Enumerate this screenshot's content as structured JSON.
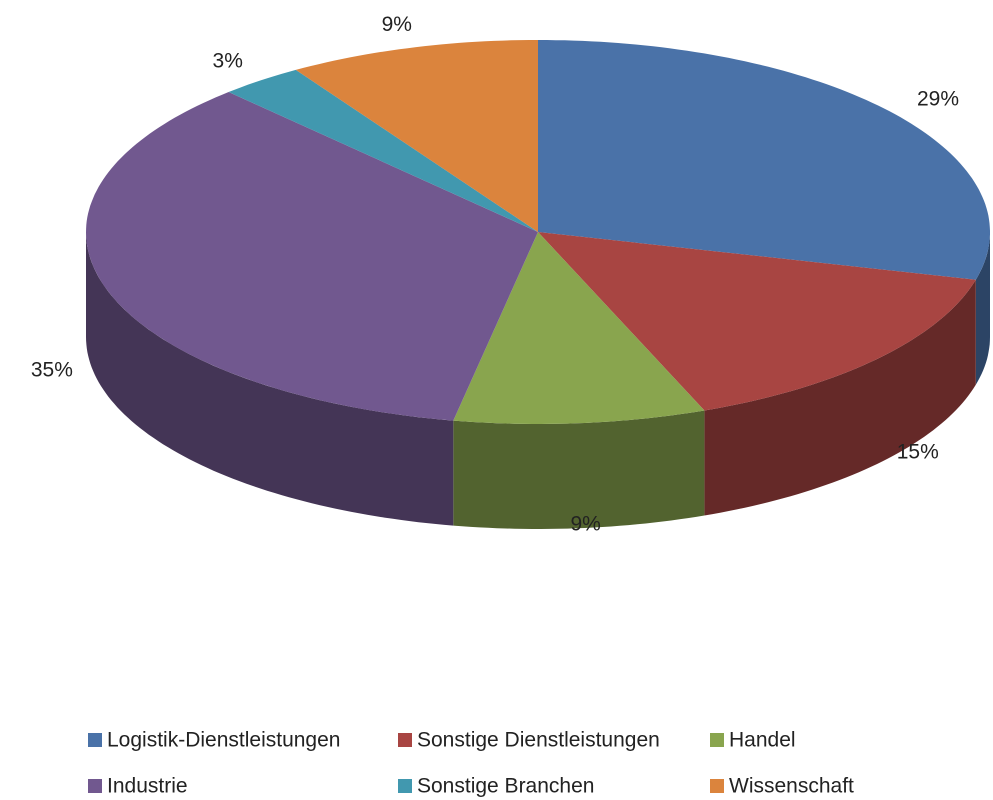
{
  "chart_data": {
    "type": "pie",
    "categories": [
      "Logistik-Dienstleistungen",
      "Sonstige Dienstleistungen",
      "Handel",
      "Industrie",
      "Sonstige Branchen",
      "Wissenschaft"
    ],
    "values": [
      29,
      15,
      9,
      35,
      3,
      9
    ],
    "value_labels": [
      "29%",
      "15%",
      "9%",
      "35%",
      "3%",
      "9%"
    ],
    "colors": [
      "#4a72a8",
      "#a84542",
      "#89a54e",
      "#71588f",
      "#4198af",
      "#db843d"
    ],
    "legend": "bottom"
  }
}
